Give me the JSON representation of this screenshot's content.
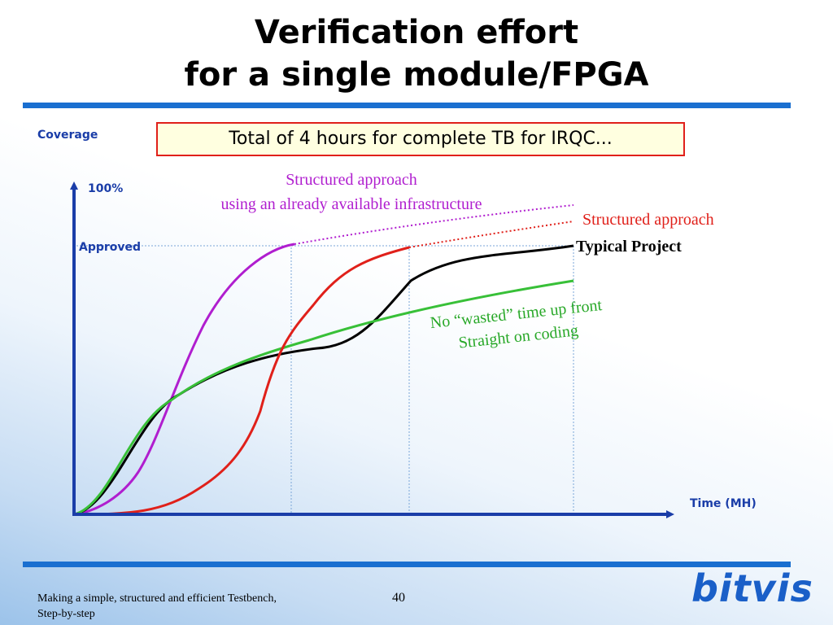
{
  "title": {
    "line1": "Verification effort",
    "line2": "for a single module/FPGA"
  },
  "callout": "Total of 4 hours for complete TB for IRQC...",
  "chart_data": {
    "type": "line",
    "ylabel": "Coverage",
    "xlabel": "Time (MH)",
    "ytick_top": "100%",
    "ytick_approved": "Approved",
    "series": [
      {
        "name": "Structured approach using an already available infrastructure",
        "color": "#b01ecf"
      },
      {
        "name": "Structured approach",
        "color": "#e0201a"
      },
      {
        "name": "Typical Project",
        "color": "#000000"
      },
      {
        "name": "No “wasted” time up front Straight on coding",
        "color": "#38c038"
      }
    ],
    "annotations": {
      "magenta_line1": "Structured approach",
      "magenta_line2": "using an already available infrastructure",
      "red": "Structured approach",
      "black": "Typical Project",
      "green_line1": "No “wasted” time up front",
      "green_line2": "Straight on coding"
    }
  },
  "footer": {
    "line1": "Making a simple, structured and efficient Testbench,",
    "line2": "Step-by-step"
  },
  "page_number": "40",
  "logo": "bitvis"
}
